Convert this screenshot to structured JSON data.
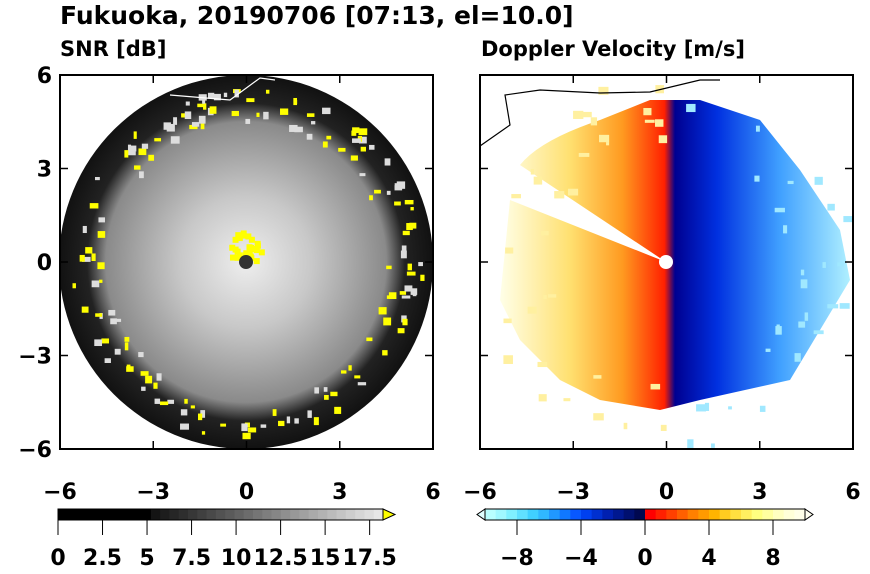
{
  "chart_data": [
    {
      "type": "heatmap",
      "figure_title": "Fukuoka, 20190706 [07:13, el=10.0]",
      "title": "SNR [dB]",
      "xlim": [
        -6,
        6
      ],
      "ylim": [
        -6,
        6
      ],
      "xticks": [
        "−6",
        "−3",
        "0",
        "3",
        "6"
      ],
      "yticks": [
        "6",
        "3",
        "0",
        "−3",
        "−6"
      ],
      "colorbar": {
        "min": 0,
        "max": 17.5,
        "extend": "max",
        "labels": [
          "0",
          "2.5",
          "5",
          "7.5",
          "10",
          "12.5",
          "15",
          "17.5"
        ],
        "colors": [
          "#000000",
          "#ffffff",
          "#ffff00"
        ]
      }
    },
    {
      "type": "heatmap",
      "title": "Doppler Velocity [m/s]",
      "xlim": [
        -6,
        6
      ],
      "ylim": [
        -6,
        6
      ],
      "xticks": [
        "−6",
        "−3",
        "0",
        "3",
        "6"
      ],
      "colorbar": {
        "min": -10,
        "max": 10,
        "extend": "both",
        "labels": [
          "−8",
          "−4",
          "0",
          "4",
          "8"
        ],
        "colors": [
          "#b0ffff",
          "#0020e0",
          "#000060",
          "#ff0000",
          "#ff9900",
          "#ffff60",
          "#ffffe0"
        ]
      }
    }
  ]
}
